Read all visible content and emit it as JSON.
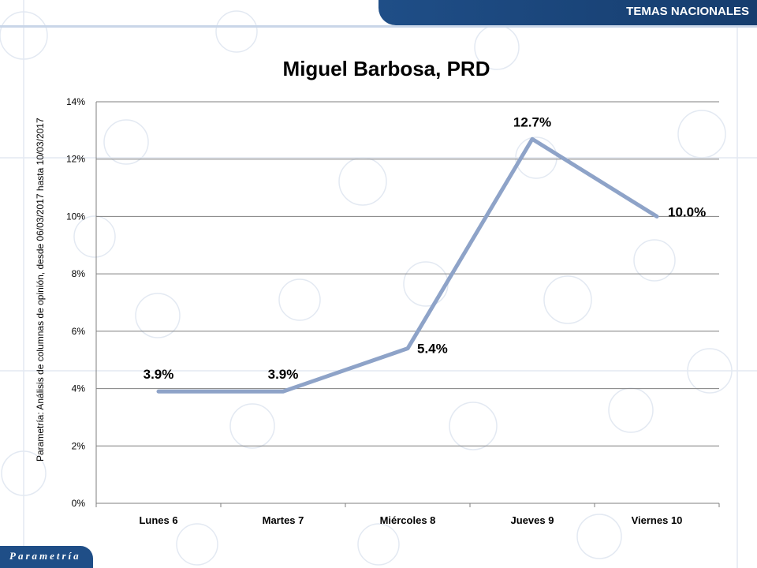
{
  "header": {
    "section_label": "TEMAS NACIONALES"
  },
  "side_note": "Parametría: Análisis de columnas de opinión, desde 06/03/2017  hasta  10/03/2017",
  "logo": {
    "text": "Parametría"
  },
  "colors": {
    "header": "#1f4e87",
    "line": "#8ea3c8",
    "grid": "#7f7f7f"
  },
  "chart_data": {
    "type": "line",
    "title": "Miguel Barbosa, PRD",
    "categories": [
      "Lunes 6",
      "Martes 7",
      "Miércoles 8",
      "Jueves 9",
      "Viernes 10"
    ],
    "series": [
      {
        "values": [
          3.9,
          3.9,
          5.4,
          12.7,
          10.0
        ]
      }
    ],
    "data_labels": [
      "3.9%",
      "3.9%",
      "5.4%",
      "12.7%",
      "10.0%"
    ],
    "yticks": [
      "0%",
      "2%",
      "4%",
      "6%",
      "8%",
      "10%",
      "12%",
      "14%"
    ],
    "ylim": [
      0,
      14
    ],
    "grid": true,
    "legend": "none"
  }
}
